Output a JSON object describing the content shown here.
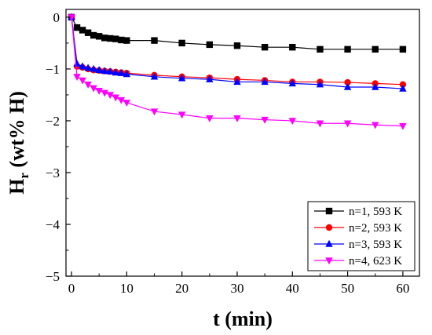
{
  "chart_data": {
    "type": "line",
    "xlabel": "t (min)",
    "ylabel_main": "H",
    "ylabel_sub": "r",
    "ylabel_rest": " (wt% H)",
    "xlim": [
      -1,
      63
    ],
    "ylim": [
      -5,
      0.15
    ],
    "xticks": [
      0,
      10,
      20,
      30,
      40,
      50,
      60
    ],
    "yticks": [
      0,
      -1,
      -2,
      -3,
      -4,
      -5
    ],
    "xtick_labels": [
      "0",
      "10",
      "20",
      "30",
      "40",
      "50",
      "60"
    ],
    "ytick_labels": [
      "0",
      "−1",
      "−2",
      "−3",
      "−4",
      "−5"
    ],
    "legend_position": "bottom-right",
    "series": [
      {
        "name": "n=1, 593 K",
        "color": "#000000",
        "marker": "square",
        "x": [
          0,
          1,
          2,
          3,
          4,
          5,
          6,
          7,
          8,
          9,
          10,
          15,
          20,
          25,
          30,
          35,
          40,
          45,
          50,
          55,
          60
        ],
        "y": [
          0,
          -0.2,
          -0.25,
          -0.3,
          -0.35,
          -0.37,
          -0.4,
          -0.41,
          -0.42,
          -0.44,
          -0.45,
          -0.45,
          -0.5,
          -0.53,
          -0.55,
          -0.58,
          -0.58,
          -0.62,
          -0.62,
          -0.62,
          -0.62
        ]
      },
      {
        "name": "n=2, 593 K",
        "color": "#ff0000",
        "marker": "circle",
        "x": [
          0,
          1,
          2,
          3,
          4,
          5,
          6,
          7,
          8,
          9,
          10,
          15,
          20,
          25,
          30,
          35,
          40,
          45,
          50,
          55,
          60
        ],
        "y": [
          0,
          -0.95,
          -0.97,
          -1.0,
          -1.02,
          -1.03,
          -1.04,
          -1.05,
          -1.06,
          -1.07,
          -1.08,
          -1.12,
          -1.15,
          -1.17,
          -1.2,
          -1.22,
          -1.25,
          -1.25,
          -1.26,
          -1.28,
          -1.3
        ]
      },
      {
        "name": "n=3, 593 K",
        "color": "#0000ff",
        "marker": "triangle-up",
        "x": [
          0,
          1,
          2,
          3,
          4,
          5,
          6,
          7,
          8,
          9,
          10,
          15,
          20,
          25,
          30,
          35,
          40,
          45,
          50,
          55,
          60
        ],
        "y": [
          0,
          -0.9,
          -0.95,
          -0.98,
          -1.0,
          -1.02,
          -1.04,
          -1.05,
          -1.07,
          -1.08,
          -1.1,
          -1.15,
          -1.18,
          -1.2,
          -1.25,
          -1.25,
          -1.28,
          -1.3,
          -1.35,
          -1.35,
          -1.38
        ]
      },
      {
        "name": "n=4, 623 K",
        "color": "#ff00ff",
        "marker": "triangle-down",
        "x": [
          0,
          1,
          2,
          3,
          4,
          5,
          6,
          7,
          8,
          9,
          10,
          15,
          20,
          25,
          30,
          35,
          40,
          45,
          50,
          55,
          60
        ],
        "y": [
          0,
          -1.15,
          -1.22,
          -1.3,
          -1.37,
          -1.42,
          -1.46,
          -1.5,
          -1.55,
          -1.6,
          -1.65,
          -1.82,
          -1.88,
          -1.95,
          -1.95,
          -1.98,
          -2.0,
          -2.05,
          -2.05,
          -2.08,
          -2.1
        ]
      }
    ]
  }
}
